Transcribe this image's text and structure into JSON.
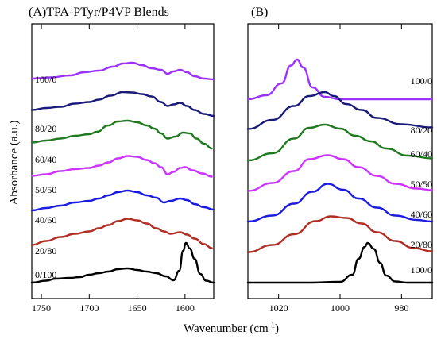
{
  "chart_data": [
    {
      "type": "line",
      "title": "(A)TPA-PTyr/P4VP Blends",
      "xlabel": "Wavenumber (cm",
      "ylabel": "Absorbance (a.u.)",
      "xlim": [
        1760,
        1570
      ],
      "x_ticks": [
        1750,
        1700,
        1650,
        1600
      ],
      "series": [
        {
          "name": "100/0",
          "color": "#9b30ff",
          "offset": 6,
          "points": [
            [
              1760,
              0.52
            ],
            [
              1740,
              0.55
            ],
            [
              1720,
              0.6
            ],
            [
              1705,
              0.68
            ],
            [
              1690,
              0.72
            ],
            [
              1675,
              0.82
            ],
            [
              1665,
              0.9
            ],
            [
              1655,
              0.92
            ],
            [
              1645,
              0.86
            ],
            [
              1635,
              0.78
            ],
            [
              1625,
              0.74
            ],
            [
              1618,
              0.64
            ],
            [
              1612,
              0.7
            ],
            [
              1605,
              0.74
            ],
            [
              1598,
              0.68
            ],
            [
              1590,
              0.58
            ],
            [
              1580,
              0.52
            ],
            [
              1570,
              0.5
            ]
          ]
        },
        {
          "name": "80/20",
          "color": "#1a1a7a",
          "offset": 5,
          "points": [
            [
              1760,
              0.5
            ],
            [
              1745,
              0.55
            ],
            [
              1730,
              0.58
            ],
            [
              1715,
              0.66
            ],
            [
              1700,
              0.7
            ],
            [
              1690,
              0.76
            ],
            [
              1678,
              0.86
            ],
            [
              1665,
              0.95
            ],
            [
              1655,
              0.94
            ],
            [
              1645,
              0.9
            ],
            [
              1635,
              0.84
            ],
            [
              1625,
              0.7
            ],
            [
              1618,
              0.6
            ],
            [
              1612,
              0.64
            ],
            [
              1605,
              0.68
            ],
            [
              1598,
              0.6
            ],
            [
              1590,
              0.5
            ],
            [
              1580,
              0.4
            ],
            [
              1570,
              0.35
            ]
          ]
        },
        {
          "name": "60/40",
          "color": "#1f7a1f",
          "offset": 4,
          "points": [
            [
              1760,
              0.45
            ],
            [
              1745,
              0.5
            ],
            [
              1730,
              0.55
            ],
            [
              1715,
              0.62
            ],
            [
              1700,
              0.66
            ],
            [
              1692,
              0.72
            ],
            [
              1680,
              0.88
            ],
            [
              1670,
              0.98
            ],
            [
              1660,
              1.0
            ],
            [
              1650,
              0.96
            ],
            [
              1640,
              0.88
            ],
            [
              1632,
              0.8
            ],
            [
              1625,
              0.68
            ],
            [
              1618,
              0.55
            ],
            [
              1610,
              0.6
            ],
            [
              1602,
              0.7
            ],
            [
              1595,
              0.68
            ],
            [
              1588,
              0.55
            ],
            [
              1580,
              0.42
            ],
            [
              1572,
              0.3
            ]
          ]
        },
        {
          "name": "50/50",
          "color": "#cc33ff",
          "offset": 3,
          "points": [
            [
              1760,
              0.38
            ],
            [
              1745,
              0.42
            ],
            [
              1730,
              0.5
            ],
            [
              1715,
              0.55
            ],
            [
              1700,
              0.58
            ],
            [
              1690,
              0.64
            ],
            [
              1680,
              0.72
            ],
            [
              1670,
              0.82
            ],
            [
              1660,
              0.88
            ],
            [
              1650,
              0.86
            ],
            [
              1640,
              0.78
            ],
            [
              1632,
              0.7
            ],
            [
              1625,
              0.6
            ],
            [
              1618,
              0.42
            ],
            [
              1612,
              0.48
            ],
            [
              1605,
              0.58
            ],
            [
              1600,
              0.6
            ],
            [
              1592,
              0.52
            ],
            [
              1582,
              0.44
            ],
            [
              1572,
              0.36
            ]
          ]
        },
        {
          "name": "40/60",
          "color": "#1c1ce0",
          "offset": 2,
          "points": [
            [
              1760,
              0.28
            ],
            [
              1745,
              0.34
            ],
            [
              1730,
              0.4
            ],
            [
              1715,
              0.48
            ],
            [
              1700,
              0.52
            ],
            [
              1690,
              0.58
            ],
            [
              1680,
              0.66
            ],
            [
              1670,
              0.74
            ],
            [
              1660,
              0.78
            ],
            [
              1650,
              0.74
            ],
            [
              1640,
              0.66
            ],
            [
              1630,
              0.6
            ],
            [
              1622,
              0.48
            ],
            [
              1615,
              0.52
            ],
            [
              1605,
              0.58
            ],
            [
              1598,
              0.54
            ],
            [
              1590,
              0.44
            ],
            [
              1580,
              0.36
            ],
            [
              1570,
              0.3
            ]
          ]
        },
        {
          "name": "20/80",
          "color": "#b22d22",
          "offset": 1,
          "points": [
            [
              1760,
              0.18
            ],
            [
              1745,
              0.28
            ],
            [
              1730,
              0.38
            ],
            [
              1715,
              0.46
            ],
            [
              1700,
              0.52
            ],
            [
              1690,
              0.6
            ],
            [
              1680,
              0.68
            ],
            [
              1670,
              0.78
            ],
            [
              1660,
              0.84
            ],
            [
              1650,
              0.8
            ],
            [
              1640,
              0.72
            ],
            [
              1630,
              0.6
            ],
            [
              1622,
              0.52
            ],
            [
              1615,
              0.46
            ],
            [
              1605,
              0.5
            ],
            [
              1598,
              0.44
            ],
            [
              1590,
              0.34
            ],
            [
              1580,
              0.2
            ],
            [
              1572,
              0.1
            ]
          ]
        },
        {
          "name": "0/100",
          "color": "#000000",
          "offset": 0,
          "points": [
            [
              1760,
              0.0
            ],
            [
              1745,
              0.05
            ],
            [
              1735,
              0.1
            ],
            [
              1720,
              0.12
            ],
            [
              1710,
              0.14
            ],
            [
              1700,
              0.2
            ],
            [
              1690,
              0.24
            ],
            [
              1680,
              0.28
            ],
            [
              1670,
              0.34
            ],
            [
              1660,
              0.36
            ],
            [
              1650,
              0.32
            ],
            [
              1640,
              0.28
            ],
            [
              1630,
              0.24
            ],
            [
              1620,
              0.16
            ],
            [
              1612,
              0.06
            ],
            [
              1606,
              0.3
            ],
            [
              1602,
              0.8
            ],
            [
              1599,
              1.0
            ],
            [
              1595,
              0.86
            ],
            [
              1590,
              0.6
            ],
            [
              1584,
              0.22
            ],
            [
              1578,
              0.05
            ],
            [
              1570,
              0.0
            ]
          ]
        }
      ]
    },
    {
      "type": "line",
      "title": "(B)",
      "xlabel": "Wavenumber (cm",
      "xlim": [
        1030,
        970
      ],
      "x_ticks": [
        1020,
        1000,
        980
      ],
      "series": [
        {
          "name": "100/0",
          "color": "#9b30ff",
          "offset": 6,
          "points": [
            [
              1030,
              0.0
            ],
            [
              1024,
              0.1
            ],
            [
              1019,
              0.4
            ],
            [
              1016,
              0.85
            ],
            [
              1014,
              1.0
            ],
            [
              1012,
              0.8
            ],
            [
              1009,
              0.3
            ],
            [
              1005,
              0.06
            ],
            [
              1000,
              0.0
            ],
            [
              990,
              0.0
            ],
            [
              970,
              0.0
            ]
          ]
        },
        {
          "name": "80/20",
          "color": "#1a1a7a",
          "offset": 5,
          "points": [
            [
              1030,
              0.02
            ],
            [
              1022,
              0.25
            ],
            [
              1015,
              0.6
            ],
            [
              1010,
              0.85
            ],
            [
              1005,
              0.95
            ],
            [
              1002,
              0.85
            ],
            [
              998,
              0.65
            ],
            [
              993,
              0.5
            ],
            [
              988,
              0.3
            ],
            [
              980,
              0.14
            ],
            [
              970,
              0.06
            ]
          ]
        },
        {
          "name": "60/40",
          "color": "#1f7a1f",
          "offset": 4,
          "points": [
            [
              1030,
              0.0
            ],
            [
              1022,
              0.18
            ],
            [
              1015,
              0.55
            ],
            [
              1010,
              0.82
            ],
            [
              1005,
              0.9
            ],
            [
              1000,
              0.8
            ],
            [
              995,
              0.62
            ],
            [
              990,
              0.48
            ],
            [
              985,
              0.3
            ],
            [
              978,
              0.12
            ],
            [
              970,
              0.05
            ]
          ]
        },
        {
          "name": "50/50",
          "color": "#cc33ff",
          "offset": 3,
          "points": [
            [
              1030,
              0.0
            ],
            [
              1022,
              0.2
            ],
            [
              1015,
              0.5
            ],
            [
              1010,
              0.8
            ],
            [
              1004,
              0.9
            ],
            [
              999,
              0.8
            ],
            [
              994,
              0.6
            ],
            [
              988,
              0.38
            ],
            [
              982,
              0.18
            ],
            [
              975,
              0.06
            ],
            [
              970,
              0.02
            ]
          ]
        },
        {
          "name": "40/60",
          "color": "#1c1ce0",
          "offset": 2,
          "points": [
            [
              1030,
              0.0
            ],
            [
              1022,
              0.15
            ],
            [
              1015,
              0.45
            ],
            [
              1009,
              0.75
            ],
            [
              1004,
              0.95
            ],
            [
              999,
              0.8
            ],
            [
              994,
              0.58
            ],
            [
              988,
              0.35
            ],
            [
              982,
              0.15
            ],
            [
              975,
              0.04
            ],
            [
              970,
              0.0
            ]
          ]
        },
        {
          "name": "20/80",
          "color": "#b22d22",
          "offset": 1,
          "points": [
            [
              1030,
              0.0
            ],
            [
              1022,
              0.18
            ],
            [
              1015,
              0.45
            ],
            [
              1008,
              0.78
            ],
            [
              1003,
              0.9
            ],
            [
              998,
              0.86
            ],
            [
              993,
              0.72
            ],
            [
              988,
              0.5
            ],
            [
              982,
              0.28
            ],
            [
              976,
              0.1
            ],
            [
              970,
              0.02
            ]
          ]
        },
        {
          "name": "100/0",
          "color": "#000000",
          "offset": 0,
          "points": [
            [
              1030,
              0.0
            ],
            [
              1010,
              0.0
            ],
            [
              1000,
              0.02
            ],
            [
              996,
              0.2
            ],
            [
              994,
              0.6
            ],
            [
              992,
              0.9
            ],
            [
              991,
              1.0
            ],
            [
              989,
              0.85
            ],
            [
              987,
              0.5
            ],
            [
              985,
              0.18
            ],
            [
              982,
              0.03
            ],
            [
              978,
              0.0
            ],
            [
              970,
              0.0
            ]
          ]
        }
      ]
    }
  ],
  "axis": {
    "ylabel": "Absorbance (a.u.)",
    "xlabel": "Wavenumber (cm",
    "xlabel_sup": "-1",
    "xlabel_close": ")"
  }
}
